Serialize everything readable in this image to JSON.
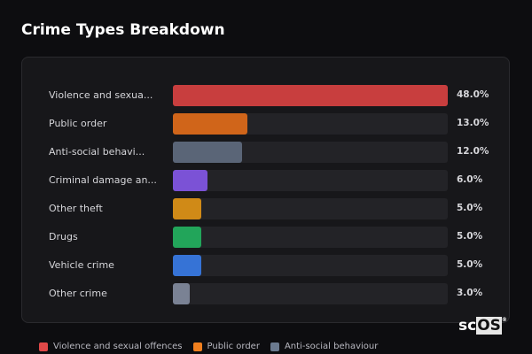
{
  "title": "Crime Types Breakdown",
  "chart_data": {
    "type": "bar",
    "orientation": "horizontal",
    "title": "Crime Types Breakdown",
    "categories": [
      "Violence and sexua...",
      "Public order",
      "Anti-social behavi...",
      "Criminal damage an...",
      "Other theft",
      "Drugs",
      "Vehicle crime",
      "Other crime"
    ],
    "values": [
      48.0,
      13.0,
      12.0,
      6.0,
      5.0,
      5.0,
      5.0,
      3.0
    ],
    "value_labels": [
      "48.0%",
      "13.0%",
      "12.0%",
      "6.0%",
      "5.0%",
      "5.0%",
      "5.0%",
      "3.0%"
    ],
    "colors": [
      "#c83e3e",
      "#d0651a",
      "#5a6577",
      "#7b52d6",
      "#d08a17",
      "#22a55a",
      "#3673d6",
      "#7a8294"
    ],
    "scale_max": 48.0,
    "legend": {
      "placement": "bottom",
      "entries": [
        {
          "label": "Violence and sexual offences",
          "color": "#e04848"
        },
        {
          "label": "Public order",
          "color": "#f07f1e"
        },
        {
          "label": "Anti-social behaviour",
          "color": "#6b7a8f"
        }
      ]
    }
  },
  "logo": {
    "text_a": "sc",
    "text_b": "OS",
    "mark": "®"
  }
}
